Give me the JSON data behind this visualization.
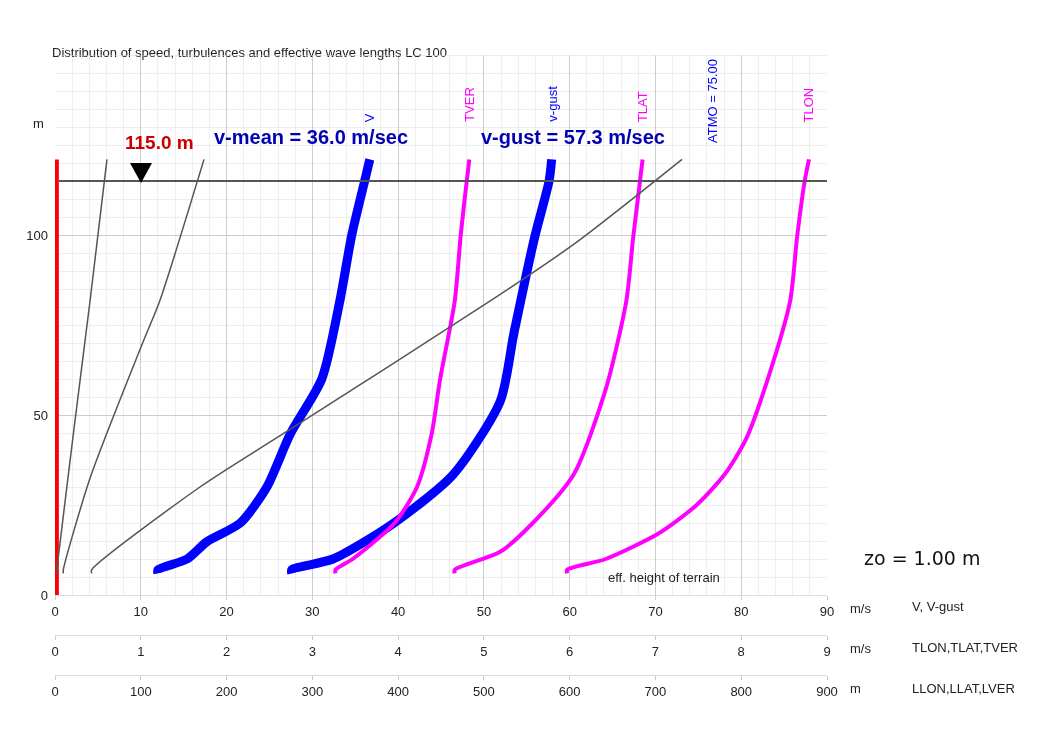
{
  "chart_data": [
    {
      "type": "line",
      "title": "Distribution of speed, turbulences and effective wave lengths LC 100",
      "xlabel": "m/s",
      "x2label": "m/s",
      "ylabel": "m",
      "xlim": [
        0,
        90
      ],
      "xticks": [
        0,
        10,
        20,
        30,
        40,
        50,
        60,
        70,
        80,
        90
      ],
      "x2lim": [
        0,
        9
      ],
      "x2ticks": [
        0,
        1,
        2,
        3,
        4,
        5,
        6,
        7,
        8,
        9
      ],
      "ylim": [
        0,
        150
      ],
      "yticks": [
        0,
        50,
        100
      ],
      "grid": true,
      "legend": false,
      "marker": "none",
      "line_style": "solid",
      "series": [
        {
          "type": "bar",
          "color": "#ff0000",
          "x": [
            0
          ],
          "values": [
            121
          ]
        },
        {
          "name": "V",
          "color": "#0000ff",
          "x": [
            12.0,
            12.0,
            15.4,
            17.7,
            21.6,
            24.7,
            27.4,
            31.1,
            33.2,
            34.6,
            36.1,
            36.7
          ],
          "values": [
            6,
            7,
            10,
            14.8,
            20,
            30,
            44.6,
            60,
            81.6,
            100,
            115,
            121
          ]
        },
        {
          "name": "TVER",
          "color": "#ff00ff",
          "axis": "x2",
          "x": [
            3.27,
            3.27,
            3.47,
            3.96,
            4.22,
            4.39,
            4.49,
            4.66,
            4.73,
            4.8,
            4.83
          ],
          "values": [
            6,
            7,
            10,
            20,
            30,
            44.6,
            60,
            81.6,
            100,
            115,
            121
          ]
        },
        {
          "name": "v-gust",
          "color": "#0000ff",
          "x": [
            27.6,
            27.6,
            32.4,
            39.4,
            46.4,
            51.9,
            53.5,
            55.9,
            57.6,
            57.9
          ],
          "values": [
            6,
            7,
            10,
            19.8,
            33.4,
            53.8,
            72.7,
            99.2,
            115,
            121
          ]
        },
        {
          "name": "TLAT",
          "color": "#ff00ff",
          "axis": "x2",
          "x": [
            4.66,
            4.66,
            5.19,
            5.57,
            6.05,
            6.42,
            6.66,
            6.74,
            6.82,
            6.85
          ],
          "values": [
            6,
            7,
            12,
            20,
            33.6,
            57.1,
            81.6,
            99.2,
            115,
            121
          ]
        },
        {
          "name": "TLON",
          "color": "#ff00ff",
          "axis": "x2",
          "x": [
            5.97,
            5.97,
            6.42,
            7.03,
            7.48,
            7.81,
            8.06,
            8.31,
            8.57,
            8.65,
            8.74,
            8.79
          ],
          "values": [
            6,
            7,
            10,
            17,
            25,
            33.6,
            43.5,
            60,
            81.6,
            99.2,
            115,
            121
          ]
        }
      ],
      "ref_lines": [
        {
          "axis": "y",
          "value": 115,
          "label": "115.0 m",
          "color": "#555555"
        }
      ],
      "annotations": [
        "v-mean = 36.0 m/sec",
        "v-gust = 57.3 m/sec",
        "ATMO = 75.00",
        "eff. height of terrain",
        "zo = 1.00 m",
        "V, V-gust",
        "TLON,TLAT,TVER"
      ]
    },
    {
      "type": "line",
      "xlabel": "m",
      "xlim": [
        0,
        900
      ],
      "xticks": [
        0,
        100,
        200,
        300,
        400,
        500,
        600,
        700,
        800,
        900
      ],
      "ylim": [
        0,
        150
      ],
      "tick_labels": "x",
      "marker": "none",
      "line_style": "solid",
      "series": [
        {
          "color": "#555555",
          "x": [
            2,
            2,
            40.8,
            60.6
          ],
          "values": [
            6,
            7,
            81.6,
            121
          ]
        },
        {
          "color": "#555555",
          "x": [
            9.7,
            9.7,
            40.8,
            103,
            122,
            173.7
          ],
          "values": [
            6,
            7,
            32.4,
            70.5,
            81.6,
            121
          ]
        },
        {
          "color": "#555555",
          "x": [
            42.7,
            42.7,
            169,
            274,
            507,
            607,
            731
          ],
          "values": [
            6,
            7,
            30,
            46,
            81.6,
            97.8,
            121
          ]
        }
      ],
      "annotations": [
        "LLON,LLAT,LVER"
      ]
    }
  ]
}
